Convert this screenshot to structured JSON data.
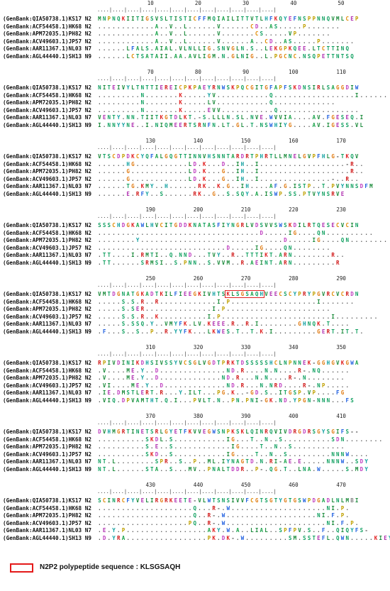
{
  "sequence_names": [
    "(GenBank:QIA50738.1)KS17 N2",
    "(GenBank:ACF54458.1)HK68 N2",
    "(GenBank:APM72035.1)PH82 N2",
    "(GenBank:ACV49603.1)JP57 N2",
    "(GenBank:AAR11367.1)NL03 N7",
    "(GenBank:AGL44440.1)SH13 N9"
  ],
  "blocks": [
    {
      "ruler_numbers": [
        "10",
        "20",
        "30",
        "40",
        "50"
      ],
      "rows": [
        "MNPNQKIITIGSVSLTISTICFFMQIAILITTVTLHFKQYEFNSPPNNQVMLCEP",
        "............A..V..L......V......CD..AS.....P.......",
        "............A..V..L......V.......CS.....VP.......",
        "............A..V..L......V......A..CD..AS.....P.......",
        "......LFALS.AIAL.VLNLLIG.SNVGLN.S..LEKGPKQEE.LTCTTINQ",
        "......LCTSATAII.AA.AVLIGM.N.GLNIG..L.PGCNC.NSQPETTNTSQ"
      ]
    },
    {
      "ruler_numbers": [
        "70",
        "80",
        "90",
        "100",
        "110"
      ],
      "rows": [
        "NITEIVYLTNTTIEREICPKPAEYRNWSKPQCGITGFAPFSKDNSIRLSAGGDIW",
        ".........N.......K.....YV...........Q.................I......",
        ".........N.......K.....LV...........Q.............",
        ".........N.......K.....EVV...........Q.................",
        "VENTY.NN.TIITKGTDLKT.-S.LLLN.SL.NVE.WVVIA....AV.FGESEQ.I",
        "I.NNYYNE..I.NIQMEERTSRNFN.LT.GL.T.NSWHIYG....AV.IGESS.VL"
      ]
    },
    {
      "ruler_numbers": [
        "130",
        "140",
        "150",
        "160",
        "170"
      ],
      "rows": [
        "VTSCDPDKCYQFALGQGTTINNVHSNNTARDRTPHRTLLMNELGVPFHLG-TKQV",
        "......HG...........LD.K...D..IH..I..................-R..",
        "......G............LD.K...G..IH..I...................R..",
        "......G............LD.K...G..IH..I...............-..R..",
        "......TG.KMY..H......RK..K.G..IH....AF.G.ISTP..T.PVYNNSDFM",
        "......E.RFY..S......RK..G..S.SQY.A.ISWP.SS.PTVYNSRVE"
      ]
    },
    {
      "ruler_numbers": [
        "190",
        "200",
        "210",
        "220",
        "230"
      ],
      "rows": [
        "SSSCHDGKAWLHVCITGDDKNATASFIYNGRLVDSVVSWSKDILRTQESECVCIN",
        "..................................D.....IG....QN..........",
        "........Y..............................D.....IG....QN........",
        "...........................D.....IG....QN........",
        ".TT....I.RMTI..Q.NND...TVY..R..TTTIKT.ARN........R..",
        ".TT......SRMSI..S.PNN..S.VVM..R.AEINT.ARN.........R"
      ]
    },
    {
      "ruler_numbers": [
        "250",
        "260",
        "270",
        "280",
        "290"
      ],
      "rows": [
        "VMTDGNATGKADTKILFIEEGKIVHTSKLSGSAQHVEECSCYPRYPGVRCVCRDN",
        ".....S.S.R..R............I.P..................I.......",
        ".....S.SER..............I.P......................",
        ".....S.S.R..K..........I.P.......................I.........",
        ".....S.SSQ.Y..VMYFK.LV.KEEE.R..R.I........GHNQK.T....",
        ".F...S..S..P..R.YYFK...LKWES.T..T.K.I.........GERT.IT.T."
      ],
      "highlight": {
        "row": 0,
        "start": 27,
        "length": 8
      }
    },
    {
      "ruler_numbers": [
        "310",
        "320",
        "330",
        "340",
        "350"
      ],
      "rows": [
        "RPIVDINIKDHSIVSSYVCSGLVGDTPRKTDSSSSSHCLNPNNEK-GGHGVKGWA",
        ".V....ME.Y..D..............ND.R....N.N....R-.NQ......",
        ".V....ME.Y..D.............ND.R...N.N....R-.N........",
        ".VI....ME.Y..D.............ND.R...N.NRD....R-.NP.....",
        ".IE.DMSTLERT.R...Y.ILT...PG.K..-GD.S..ITGSP.VP....FG",
        ".VIQ.DPVAMTHT.Q.I...PVLT.N..PN.PNI-GK.ND.YPGN-NNN...FS"
      ]
    },
    {
      "ruler_numbers": [
        "370",
        "380",
        "390",
        "400",
        "410"
      ],
      "rows": [
        "DVHMGRTINETSRLGYETFKVVEGWSNPKSKLQINRQVIVDRGDRSGYSGIFS--",
        "..........SKDL.S...........IG...T..N..S..........SDN........",
        "..........S.E..S............IG....T..N..S...........",
        "..........SKD..S...........IG....T..N..S.........NNNW....",
        "NT.L........SPR..S..P..ML.IYNAGTD.N.RI-AE.E.....NNNW..SDY",
        "NT.L......STA..S...MV..PNALTDDR..P-.QG.T..LNA.W.....S.MDY"
      ]
    },
    {
      "ruler_numbers": [
        "430",
        "440",
        "450",
        "460",
        "470"
      ],
      "rows": [
        "SCINRCFYVELIRGRKEETE-VLWTSNSIVVFCGTSGTYGTGSWPDGADLNLMBI",
        "....................Q...R-.W....................NI.P.",
        "....................Q..R-.W...................NI.F.P.",
        "...................PQ..R-.W.....................NI.F.P.",
        ".E.Y.P.................AKY.W.A..LIAL..SPFPV.S..F..QIQYFS-",
        ".D.YRA.................PK.DK-.W.........SM.SSTEFL.QWN.....KIEYFL-"
      ]
    }
  ],
  "legend": {
    "text": "N2P2 polypeptide sequence : KLSGSAQH",
    "box_color": "#e41a1a"
  },
  "residue_colors": {
    "A": "#1aa34a",
    "C": "#e08a00",
    "D": "#c040c0",
    "E": "#b030b0",
    "F": "#2060e0",
    "G": "#e07a10",
    "H": "#10a0a0",
    "I": "#1a8a3a",
    "K": "#e02020",
    "L": "#1a8a3a",
    "M": "#1a8a3a",
    "N": "#10a060",
    "P": "#c0a000",
    "Q": "#10a060",
    "R": "#d01818",
    "S": "#10a060",
    "T": "#10a060",
    "V": "#1a8a3a",
    "W": "#2060e0",
    "Y": "#10a0a0",
    "B": "#808080"
  }
}
